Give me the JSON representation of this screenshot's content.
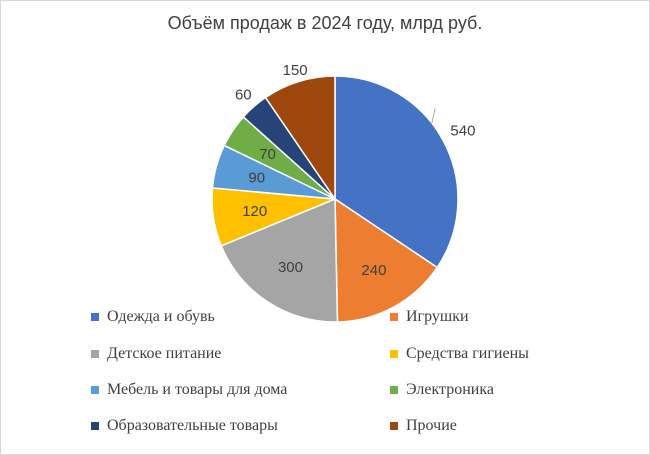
{
  "chart_data": {
    "type": "pie",
    "title": "Объём продаж в 2024 году, млрд руб.",
    "categories": [
      "Одежда и обувь",
      "Игрушки",
      "Детское питание",
      "Средства гигиены",
      "Мебель и товары для дома",
      "Электроника",
      "Образовательные товары",
      "Прочие"
    ],
    "values": [
      540,
      240,
      300,
      120,
      90,
      70,
      60,
      150
    ],
    "data_labels": [
      "540",
      "240",
      "300",
      "120",
      "90",
      "70",
      "60",
      "150"
    ],
    "colors": [
      "#4472C4",
      "#ED7D31",
      "#A5A5A5",
      "#FFC000",
      "#5B9BD5",
      "#70AD47",
      "#264478",
      "#9E480E"
    ],
    "legend_position": "bottom"
  }
}
